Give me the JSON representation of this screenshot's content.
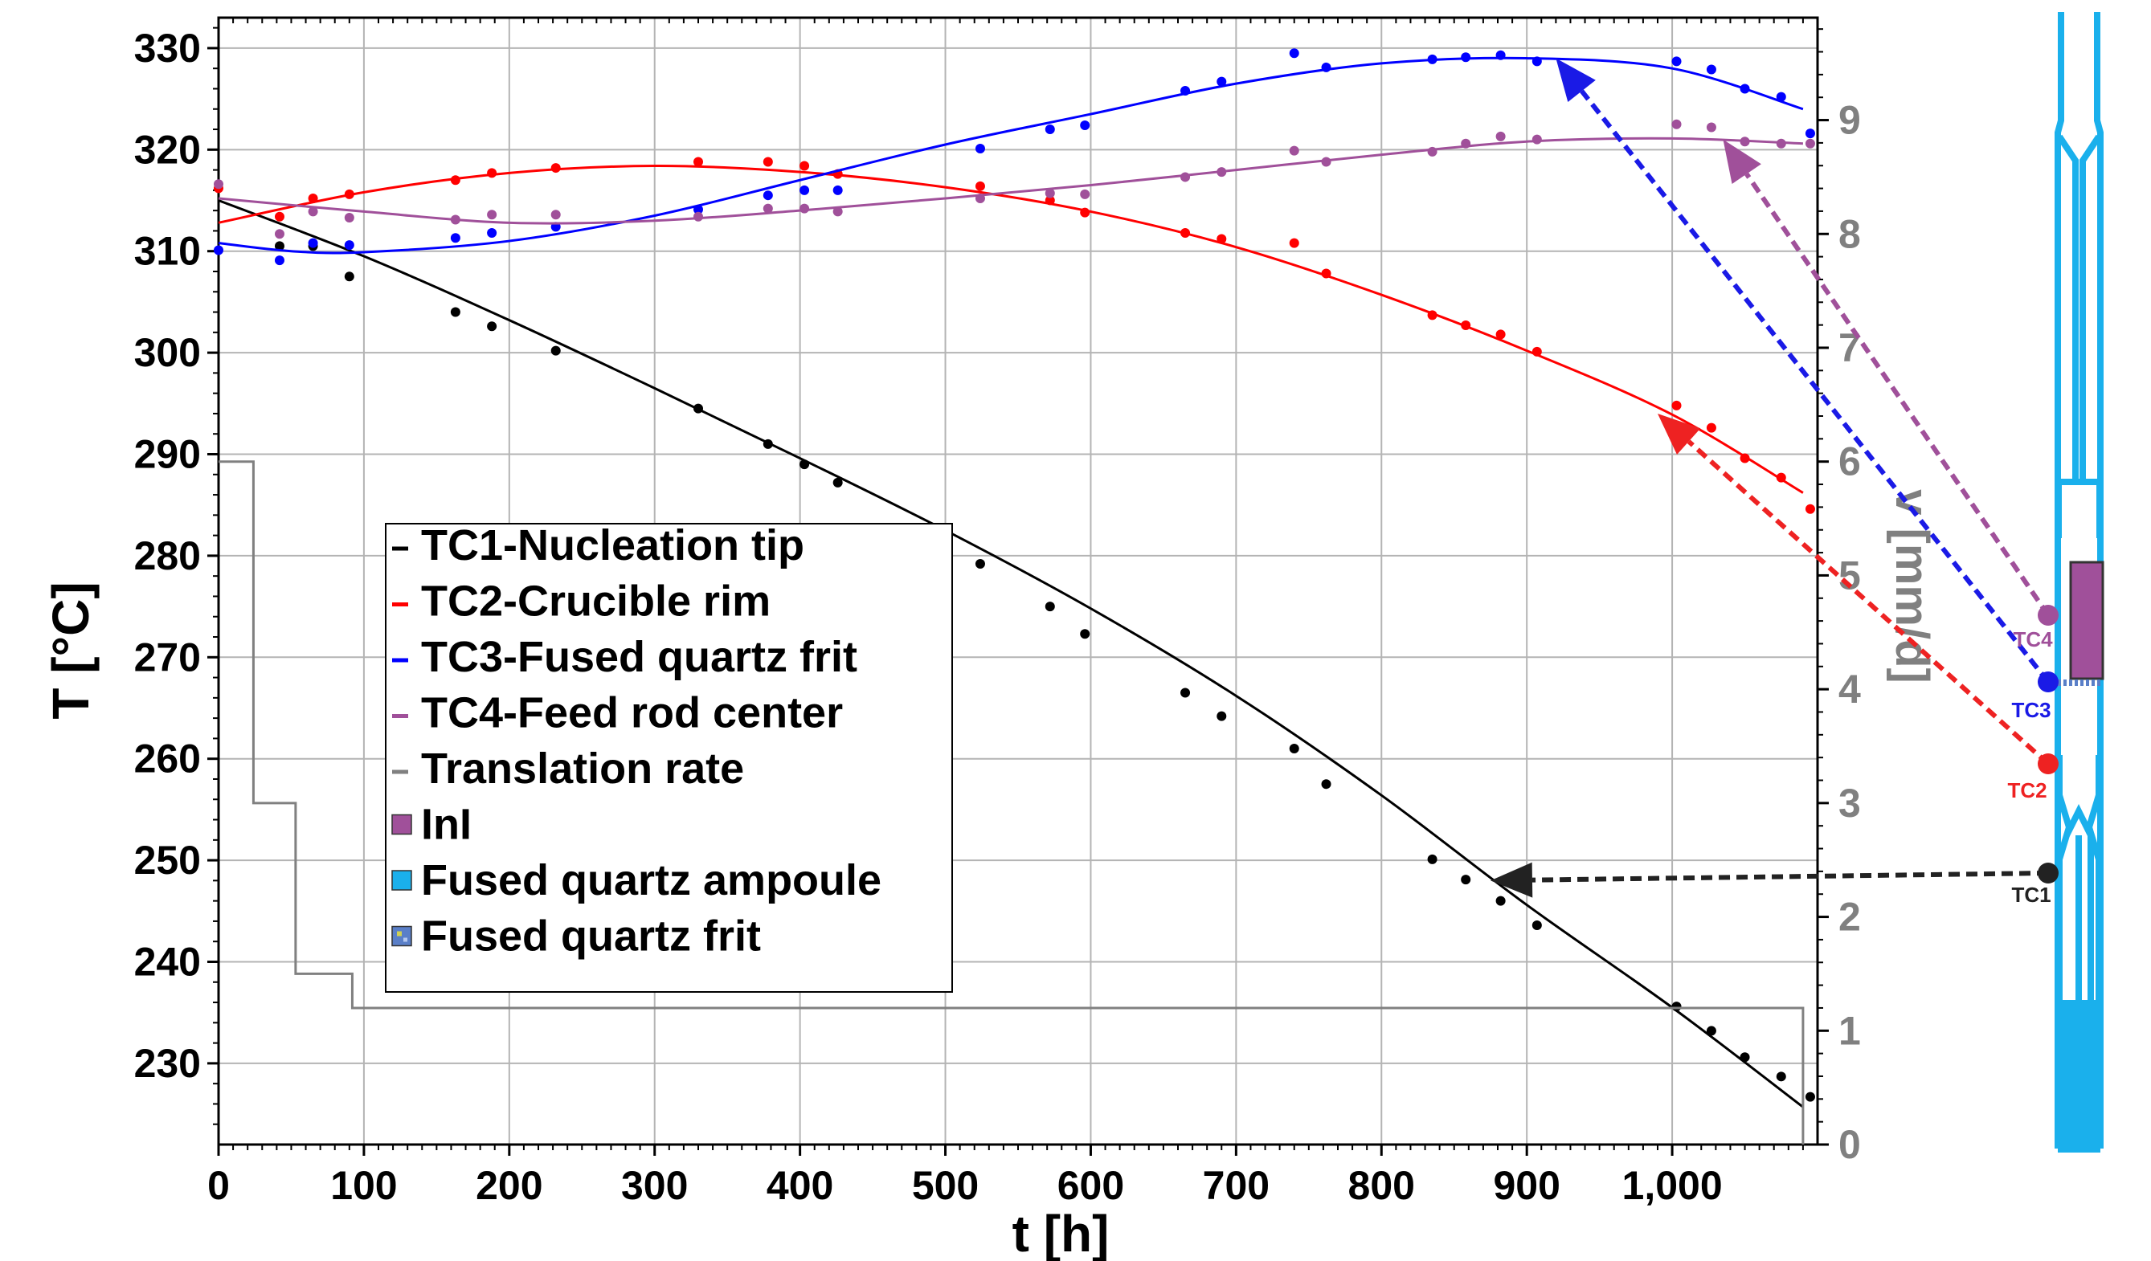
{
  "chart_data": {
    "type": "line",
    "xlabel": "t [h]",
    "ylabel": "T [°C]",
    "y2label": "v [mm/d]",
    "xlim": [
      0,
      1100
    ],
    "ylim": [
      222,
      333
    ],
    "y2lim": [
      0,
      9.9
    ],
    "xticks": [
      0,
      100,
      200,
      300,
      400,
      500,
      600,
      700,
      800,
      900,
      1000
    ],
    "xtick_labels": [
      "0",
      "100",
      "200",
      "300",
      "400",
      "500",
      "600",
      "700",
      "800",
      "900",
      "1,000"
    ],
    "yticks": [
      230,
      240,
      250,
      260,
      270,
      280,
      290,
      300,
      310,
      320,
      330
    ],
    "y2ticks": [
      0,
      1,
      2,
      3,
      4,
      5,
      6,
      7,
      8,
      9
    ],
    "grid": true,
    "legend_position": "center-left",
    "series": [
      {
        "name": "TC1-Nucleation tip",
        "color": "#000000",
        "fit": [
          [
            0,
            315
          ],
          [
            100,
            309.5
          ],
          [
            200,
            303.2
          ],
          [
            300,
            296.5
          ],
          [
            400,
            289.6
          ],
          [
            500,
            282.5
          ],
          [
            600,
            274.8
          ],
          [
            700,
            266.2
          ],
          [
            800,
            256.4
          ],
          [
            900,
            245.6
          ],
          [
            1000,
            235.5
          ],
          [
            1090,
            225.7
          ]
        ],
        "points": [
          [
            42,
            310.5
          ],
          [
            65,
            310.5
          ],
          [
            90,
            307.5
          ],
          [
            163,
            304
          ],
          [
            188,
            302.6
          ],
          [
            232,
            300.2
          ],
          [
            330,
            294.5
          ],
          [
            378,
            291
          ],
          [
            403,
            289
          ],
          [
            426,
            287.2
          ],
          [
            524,
            279.2
          ],
          [
            572,
            275
          ],
          [
            596,
            272.3
          ],
          [
            665,
            266.5
          ],
          [
            690,
            264.2
          ],
          [
            740,
            261
          ],
          [
            762,
            257.5
          ],
          [
            835,
            250.1
          ],
          [
            858,
            248.1
          ],
          [
            882,
            246
          ],
          [
            907,
            243.6
          ],
          [
            1003,
            235.6
          ],
          [
            1027,
            233.2
          ],
          [
            1050,
            230.6
          ],
          [
            1075,
            228.7
          ],
          [
            1095,
            226.7
          ]
        ]
      },
      {
        "name": "TC2-Crucible rim",
        "color": "#ff0000",
        "fit": [
          [
            0,
            312.8
          ],
          [
            100,
            315.8
          ],
          [
            200,
            317.7
          ],
          [
            300,
            318.4
          ],
          [
            400,
            317.8
          ],
          [
            500,
            316.3
          ],
          [
            600,
            313.9
          ],
          [
            700,
            310.4
          ],
          [
            800,
            305.7
          ],
          [
            900,
            300.2
          ],
          [
            1000,
            293.9
          ],
          [
            1090,
            286.2
          ]
        ],
        "points": [
          [
            0,
            316.2
          ],
          [
            42,
            313.4
          ],
          [
            65,
            315.2
          ],
          [
            90,
            315.6
          ],
          [
            163,
            317
          ],
          [
            188,
            317.7
          ],
          [
            232,
            318.2
          ],
          [
            330,
            318.8
          ],
          [
            378,
            318.8
          ],
          [
            403,
            318.4
          ],
          [
            426,
            317.6
          ],
          [
            524,
            316.4
          ],
          [
            572,
            315
          ],
          [
            596,
            313.8
          ],
          [
            665,
            311.8
          ],
          [
            690,
            311.2
          ],
          [
            740,
            310.8
          ],
          [
            762,
            307.8
          ],
          [
            835,
            303.7
          ],
          [
            858,
            302.7
          ],
          [
            882,
            301.8
          ],
          [
            907,
            300.1
          ],
          [
            1003,
            294.8
          ],
          [
            1027,
            292.6
          ],
          [
            1050,
            289.6
          ],
          [
            1075,
            287.7
          ],
          [
            1095,
            284.6
          ]
        ]
      },
      {
        "name": "TC3-Fused quartz frit",
        "color": "#0000ff",
        "fit": [
          [
            0,
            310.8
          ],
          [
            50,
            310
          ],
          [
            100,
            309.9
          ],
          [
            200,
            311
          ],
          [
            300,
            313.5
          ],
          [
            400,
            317
          ],
          [
            500,
            320.5
          ],
          [
            600,
            323.5
          ],
          [
            700,
            326.5
          ],
          [
            800,
            328.5
          ],
          [
            900,
            329
          ],
          [
            1000,
            328
          ],
          [
            1090,
            324
          ]
        ],
        "points": [
          [
            0,
            310.1
          ],
          [
            42,
            309.1
          ],
          [
            65,
            310.8
          ],
          [
            90,
            310.6
          ],
          [
            163,
            311.3
          ],
          [
            188,
            311.8
          ],
          [
            232,
            312.4
          ],
          [
            330,
            314.1
          ],
          [
            378,
            315.5
          ],
          [
            403,
            316
          ],
          [
            426,
            316
          ],
          [
            524,
            320.1
          ],
          [
            572,
            322
          ],
          [
            596,
            322.4
          ],
          [
            665,
            325.8
          ],
          [
            690,
            326.7
          ],
          [
            740,
            329.5
          ],
          [
            762,
            328.1
          ],
          [
            835,
            328.9
          ],
          [
            858,
            329.1
          ],
          [
            882,
            329.3
          ],
          [
            907,
            328.7
          ],
          [
            1003,
            328.7
          ],
          [
            1027,
            327.9
          ],
          [
            1050,
            326
          ],
          [
            1075,
            325.2
          ],
          [
            1095,
            321.6
          ]
        ]
      },
      {
        "name": "TC4-Feed rod center",
        "color": "#a0509a",
        "fit": [
          [
            0,
            315.2
          ],
          [
            100,
            313.9
          ],
          [
            200,
            312.8
          ],
          [
            300,
            313
          ],
          [
            400,
            314
          ],
          [
            500,
            315.2
          ],
          [
            600,
            316.5
          ],
          [
            700,
            318
          ],
          [
            800,
            319.5
          ],
          [
            900,
            320.8
          ],
          [
            1000,
            321.1
          ],
          [
            1090,
            320.6
          ]
        ],
        "points": [
          [
            0,
            316.6
          ],
          [
            42,
            311.7
          ],
          [
            65,
            313.9
          ],
          [
            90,
            313.3
          ],
          [
            163,
            313.1
          ],
          [
            188,
            313.6
          ],
          [
            232,
            313.6
          ],
          [
            330,
            313.4
          ],
          [
            378,
            314.2
          ],
          [
            403,
            314.2
          ],
          [
            426,
            313.9
          ],
          [
            524,
            315.2
          ],
          [
            572,
            315.7
          ],
          [
            596,
            315.6
          ],
          [
            665,
            317.3
          ],
          [
            690,
            317.8
          ],
          [
            740,
            319.9
          ],
          [
            762,
            318.8
          ],
          [
            835,
            319.8
          ],
          [
            858,
            320.6
          ],
          [
            882,
            321.3
          ],
          [
            907,
            321
          ],
          [
            1003,
            322.5
          ],
          [
            1027,
            322.2
          ],
          [
            1050,
            320.8
          ],
          [
            1075,
            320.6
          ],
          [
            1095,
            320.6
          ]
        ]
      },
      {
        "name": "Translation rate",
        "color": "#808080",
        "axis": "y2",
        "step": [
          [
            0,
            6
          ],
          [
            24,
            6
          ],
          [
            24,
            3
          ],
          [
            53,
            3
          ],
          [
            53,
            1.5
          ],
          [
            92,
            1.5
          ],
          [
            92,
            1.2
          ],
          [
            1090,
            1.2
          ],
          [
            1090,
            0
          ]
        ]
      }
    ],
    "legend": [
      {
        "label": "TC1-Nucleation tip",
        "color": "#000000",
        "kind": "line"
      },
      {
        "label": "TC2-Crucible rim",
        "color": "#ff0000",
        "kind": "line"
      },
      {
        "label": "TC3-Fused quartz frit",
        "color": "#0000ff",
        "kind": "line"
      },
      {
        "label": "TC4-Feed rod center",
        "color": "#a0509a",
        "kind": "line"
      },
      {
        "label": "Translation rate",
        "color": "#808080",
        "kind": "line"
      },
      {
        "label": "InI",
        "color": "#a0509a",
        "kind": "square"
      },
      {
        "label": "Fused quartz ampoule",
        "color": "#1ab0ec",
        "kind": "square"
      },
      {
        "label": "Fused quartz frit",
        "color": "#5a7fc8",
        "kind": "square-textured"
      }
    ],
    "annotations": [
      {
        "target": "TC1-Nucleation tip",
        "label": "TC1",
        "color": "#222222",
        "arrow_to": [
          875,
          248
        ]
      },
      {
        "target": "TC2-Crucible rim",
        "label": "TC2",
        "color": "#ee2222",
        "arrow_to": [
          990,
          294
        ]
      },
      {
        "target": "TC3-Fused quartz frit",
        "label": "TC3",
        "color": "#1a1ae6",
        "arrow_to": [
          920,
          329
        ]
      },
      {
        "target": "TC4-Feed rod center",
        "label": "TC4",
        "color": "#a0509a",
        "arrow_to": [
          1035,
          321
        ]
      }
    ]
  }
}
